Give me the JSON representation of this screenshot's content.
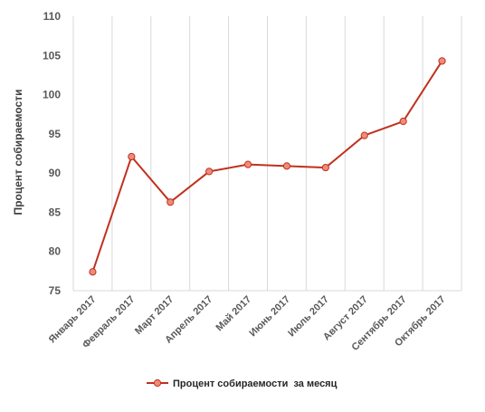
{
  "chart_data": {
    "type": "line",
    "categories": [
      "Январь 2017",
      "Февраль 2017",
      "Март 2017",
      "Апрель 2017",
      "Май 2017",
      "Июнь 2017",
      "Июль 2017",
      "Август 2017",
      "Сентябрь 2017",
      "Октябрь 2017"
    ],
    "series": [
      {
        "name": "Процент собираемости  за месяц",
        "values": [
          77.4,
          92.1,
          86.3,
          90.2,
          91.1,
          90.9,
          90.7,
          94.8,
          96.6,
          104.3
        ]
      }
    ],
    "ylabel": "Процент собираемости",
    "xlabel": "",
    "ylim": [
      75,
      110
    ],
    "yticks": [
      75,
      80,
      85,
      90,
      95,
      100,
      105,
      110
    ],
    "grid": "vertical",
    "legend": "bottom",
    "colors": {
      "line": "#c0311e",
      "marker_fill": "#f08a7a",
      "marker_stroke": "#c0311e",
      "grid": "#d9d9d9"
    }
  }
}
